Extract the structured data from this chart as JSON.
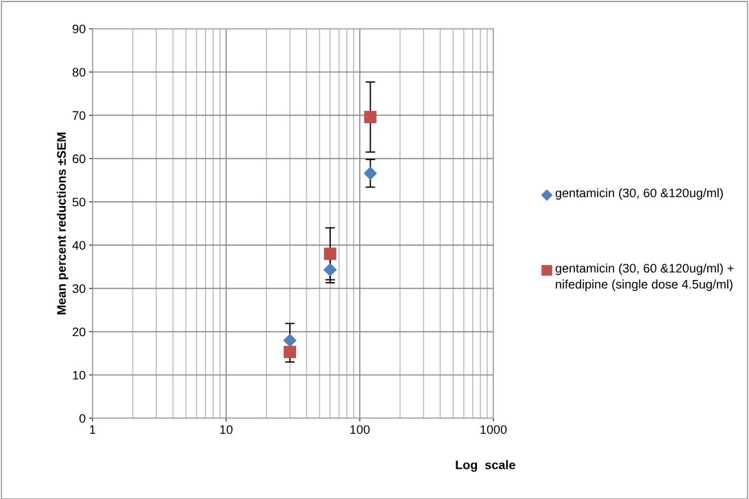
{
  "chart_data": {
    "type": "scatter",
    "xlabel": "Log  scale",
    "ylabel": "Mean percent reductions ±SEM",
    "log": "x",
    "xlim": [
      1,
      1000
    ],
    "xticks": [
      1,
      10,
      100,
      1000
    ],
    "ylim": [
      0,
      90
    ],
    "yticks": [
      0,
      10,
      20,
      30,
      40,
      50,
      60,
      70,
      80,
      90
    ],
    "grid": true,
    "legend": "right",
    "x": [
      30,
      60,
      120
    ],
    "series": [
      {
        "name": "gentamicin (30, 60 &120ug/ml)",
        "color": "#4f81bd",
        "marker": "diamond",
        "values": [
          18,
          34.3,
          56.6
        ],
        "errors": [
          3.9,
          3,
          3.2
        ]
      },
      {
        "name": "gentamicin (30, 60 &120ug/ml) + nifedipine (single dose 4.5ug/ml)",
        "color": "#c0504d",
        "marker": "square",
        "values": [
          15.3,
          38,
          69.6
        ],
        "errors": [
          2.3,
          6,
          8.1
        ]
      }
    ]
  }
}
